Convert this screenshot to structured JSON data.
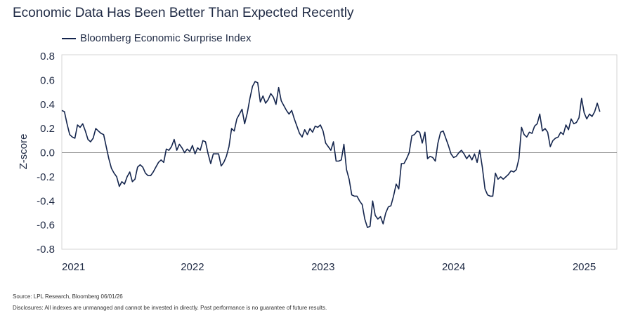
{
  "chart_data": {
    "type": "line",
    "title": "Economic Data Has Been Better Than Expected Recently",
    "ylabel": "Z-score",
    "xlabel": "",
    "ylim": [
      -0.8,
      0.8
    ],
    "yticks": [
      "0.8",
      "0.6",
      "0.4",
      "0.2",
      "0.0",
      "-0.2",
      "-0.4",
      "-0.6",
      "-0.8"
    ],
    "xlim": [
      2021.0,
      2025.25
    ],
    "xticks": [
      {
        "label": "2021",
        "x": 2021.0
      },
      {
        "label": "2022",
        "x": 2022.0
      },
      {
        "label": "2023",
        "x": 2023.0
      },
      {
        "label": "2024",
        "x": 2024.0
      },
      {
        "label": "2025",
        "x": 2025.0
      }
    ],
    "grid": false,
    "zero_line": true,
    "legend_position": "top-left",
    "series": [
      {
        "name": "Bloomberg Economic Surprise Index",
        "color": "#14254d",
        "points": [
          [
            2021.0,
            0.35
          ],
          [
            2021.02,
            0.34
          ],
          [
            2021.04,
            0.24
          ],
          [
            2021.06,
            0.15
          ],
          [
            2021.08,
            0.13
          ],
          [
            2021.1,
            0.12
          ],
          [
            2021.12,
            0.23
          ],
          [
            2021.14,
            0.21
          ],
          [
            2021.16,
            0.24
          ],
          [
            2021.18,
            0.18
          ],
          [
            2021.2,
            0.11
          ],
          [
            2021.22,
            0.09
          ],
          [
            2021.24,
            0.12
          ],
          [
            2021.26,
            0.2
          ],
          [
            2021.28,
            0.18
          ],
          [
            2021.3,
            0.16
          ],
          [
            2021.32,
            0.15
          ],
          [
            2021.34,
            0.05
          ],
          [
            2021.36,
            -0.05
          ],
          [
            2021.38,
            -0.13
          ],
          [
            2021.4,
            -0.17
          ],
          [
            2021.42,
            -0.2
          ],
          [
            2021.44,
            -0.28
          ],
          [
            2021.46,
            -0.24
          ],
          [
            2021.48,
            -0.26
          ],
          [
            2021.5,
            -0.2
          ],
          [
            2021.52,
            -0.16
          ],
          [
            2021.54,
            -0.24
          ],
          [
            2021.56,
            -0.22
          ],
          [
            2021.58,
            -0.12
          ],
          [
            2021.6,
            -0.1
          ],
          [
            2021.62,
            -0.12
          ],
          [
            2021.64,
            -0.17
          ],
          [
            2021.66,
            -0.19
          ],
          [
            2021.68,
            -0.19
          ],
          [
            2021.7,
            -0.16
          ],
          [
            2021.72,
            -0.12
          ],
          [
            2021.74,
            -0.08
          ],
          [
            2021.76,
            -0.06
          ],
          [
            2021.78,
            -0.08
          ],
          [
            2021.8,
            0.03
          ],
          [
            2021.82,
            0.02
          ],
          [
            2021.84,
            0.05
          ],
          [
            2021.86,
            0.11
          ],
          [
            2021.88,
            0.02
          ],
          [
            2021.9,
            0.07
          ],
          [
            2021.92,
            0.04
          ],
          [
            2021.94,
            0.0
          ],
          [
            2021.96,
            0.03
          ],
          [
            2021.98,
            0.01
          ],
          [
            2022.0,
            0.06
          ],
          [
            2022.02,
            -0.01
          ],
          [
            2022.04,
            0.04
          ],
          [
            2022.06,
            0.02
          ],
          [
            2022.08,
            0.1
          ],
          [
            2022.1,
            0.09
          ],
          [
            2022.12,
            -0.01
          ],
          [
            2022.14,
            -0.09
          ],
          [
            2022.16,
            -0.01
          ],
          [
            2022.18,
            -0.01
          ],
          [
            2022.2,
            -0.01
          ],
          [
            2022.22,
            -0.11
          ],
          [
            2022.24,
            -0.08
          ],
          [
            2022.26,
            -0.03
          ],
          [
            2022.28,
            0.05
          ],
          [
            2022.3,
            0.2
          ],
          [
            2022.32,
            0.18
          ],
          [
            2022.34,
            0.28
          ],
          [
            2022.36,
            0.32
          ],
          [
            2022.38,
            0.36
          ],
          [
            2022.4,
            0.24
          ],
          [
            2022.42,
            0.33
          ],
          [
            2022.44,
            0.45
          ],
          [
            2022.46,
            0.55
          ],
          [
            2022.48,
            0.59
          ],
          [
            2022.5,
            0.58
          ],
          [
            2022.52,
            0.42
          ],
          [
            2022.54,
            0.47
          ],
          [
            2022.56,
            0.41
          ],
          [
            2022.58,
            0.44
          ],
          [
            2022.6,
            0.49
          ],
          [
            2022.62,
            0.46
          ],
          [
            2022.64,
            0.4
          ],
          [
            2022.66,
            0.54
          ],
          [
            2022.68,
            0.43
          ],
          [
            2022.7,
            0.39
          ],
          [
            2022.72,
            0.35
          ],
          [
            2022.74,
            0.32
          ],
          [
            2022.76,
            0.35
          ],
          [
            2022.78,
            0.28
          ],
          [
            2022.8,
            0.22
          ],
          [
            2022.82,
            0.16
          ],
          [
            2022.84,
            0.13
          ],
          [
            2022.86,
            0.19
          ],
          [
            2022.88,
            0.15
          ],
          [
            2022.9,
            0.2
          ],
          [
            2022.92,
            0.17
          ],
          [
            2022.94,
            0.22
          ],
          [
            2022.96,
            0.21
          ],
          [
            2022.98,
            0.23
          ],
          [
            2023.0,
            0.18
          ],
          [
            2023.02,
            0.08
          ],
          [
            2023.04,
            0.05
          ],
          [
            2023.06,
            0.02
          ],
          [
            2023.08,
            0.09
          ],
          [
            2023.1,
            -0.07
          ],
          [
            2023.12,
            -0.07
          ],
          [
            2023.14,
            -0.06
          ],
          [
            2023.16,
            0.07
          ],
          [
            2023.18,
            -0.14
          ],
          [
            2023.2,
            -0.22
          ],
          [
            2023.22,
            -0.35
          ],
          [
            2023.24,
            -0.36
          ],
          [
            2023.26,
            -0.36
          ],
          [
            2023.28,
            -0.4
          ],
          [
            2023.3,
            -0.43
          ],
          [
            2023.32,
            -0.55
          ],
          [
            2023.34,
            -0.62
          ],
          [
            2023.36,
            -0.61
          ],
          [
            2023.38,
            -0.4
          ],
          [
            2023.4,
            -0.52
          ],
          [
            2023.42,
            -0.55
          ],
          [
            2023.44,
            -0.53
          ],
          [
            2023.46,
            -0.59
          ],
          [
            2023.48,
            -0.5
          ],
          [
            2023.5,
            -0.45
          ],
          [
            2023.52,
            -0.44
          ],
          [
            2023.54,
            -0.36
          ],
          [
            2023.56,
            -0.26
          ],
          [
            2023.58,
            -0.3
          ],
          [
            2023.6,
            -0.09
          ],
          [
            2023.62,
            -0.09
          ],
          [
            2023.64,
            -0.05
          ],
          [
            2023.66,
            0.0
          ],
          [
            2023.68,
            0.14
          ],
          [
            2023.7,
            0.15
          ],
          [
            2023.72,
            0.18
          ],
          [
            2023.74,
            0.17
          ],
          [
            2023.76,
            0.08
          ],
          [
            2023.78,
            0.17
          ],
          [
            2023.8,
            -0.05
          ],
          [
            2023.82,
            -0.03
          ],
          [
            2023.84,
            -0.04
          ],
          [
            2023.86,
            -0.07
          ],
          [
            2023.88,
            0.08
          ],
          [
            2023.9,
            0.17
          ],
          [
            2023.92,
            0.18
          ],
          [
            2023.94,
            0.12
          ],
          [
            2023.96,
            0.06
          ],
          [
            2023.98,
            -0.01
          ],
          [
            2024.0,
            -0.04
          ],
          [
            2024.02,
            -0.03
          ],
          [
            2024.04,
            0.0
          ],
          [
            2024.06,
            0.02
          ],
          [
            2024.08,
            -0.01
          ],
          [
            2024.1,
            -0.05
          ],
          [
            2024.12,
            -0.02
          ],
          [
            2024.14,
            -0.06
          ],
          [
            2024.16,
            -0.01
          ],
          [
            2024.18,
            -0.08
          ],
          [
            2024.2,
            0.02
          ],
          [
            2024.22,
            -0.12
          ],
          [
            2024.24,
            -0.3
          ],
          [
            2024.26,
            -0.35
          ],
          [
            2024.28,
            -0.36
          ],
          [
            2024.3,
            -0.36
          ],
          [
            2024.32,
            -0.17
          ],
          [
            2024.34,
            -0.22
          ],
          [
            2024.36,
            -0.2
          ],
          [
            2024.38,
            -0.22
          ],
          [
            2024.4,
            -0.2
          ],
          [
            2024.42,
            -0.18
          ],
          [
            2024.44,
            -0.15
          ],
          [
            2024.46,
            -0.16
          ],
          [
            2024.48,
            -0.14
          ],
          [
            2024.5,
            -0.05
          ],
          [
            2024.52,
            0.21
          ],
          [
            2024.54,
            0.15
          ],
          [
            2024.56,
            0.13
          ],
          [
            2024.58,
            0.17
          ],
          [
            2024.6,
            0.16
          ],
          [
            2024.62,
            0.22
          ],
          [
            2024.64,
            0.24
          ],
          [
            2024.66,
            0.32
          ],
          [
            2024.68,
            0.18
          ],
          [
            2024.7,
            0.2
          ],
          [
            2024.72,
            0.17
          ],
          [
            2024.74,
            0.05
          ],
          [
            2024.76,
            0.1
          ],
          [
            2024.78,
            0.12
          ],
          [
            2024.8,
            0.13
          ],
          [
            2024.82,
            0.17
          ],
          [
            2024.84,
            0.15
          ],
          [
            2024.86,
            0.23
          ],
          [
            2024.88,
            0.19
          ],
          [
            2024.9,
            0.28
          ],
          [
            2024.92,
            0.24
          ],
          [
            2024.94,
            0.25
          ],
          [
            2024.96,
            0.29
          ],
          [
            2024.98,
            0.45
          ],
          [
            2025.0,
            0.33
          ],
          [
            2025.02,
            0.28
          ],
          [
            2025.04,
            0.32
          ],
          [
            2025.06,
            0.3
          ],
          [
            2025.08,
            0.34
          ],
          [
            2025.1,
            0.41
          ],
          [
            2025.12,
            0.34
          ]
        ]
      }
    ]
  },
  "footer": {
    "source": "Source: LPL Research, Bloomberg 06/01/26",
    "disclosure": "Disclosures: All indexes are unmanaged and cannot be invested in directly. Past performance is no guarantee of future results."
  }
}
